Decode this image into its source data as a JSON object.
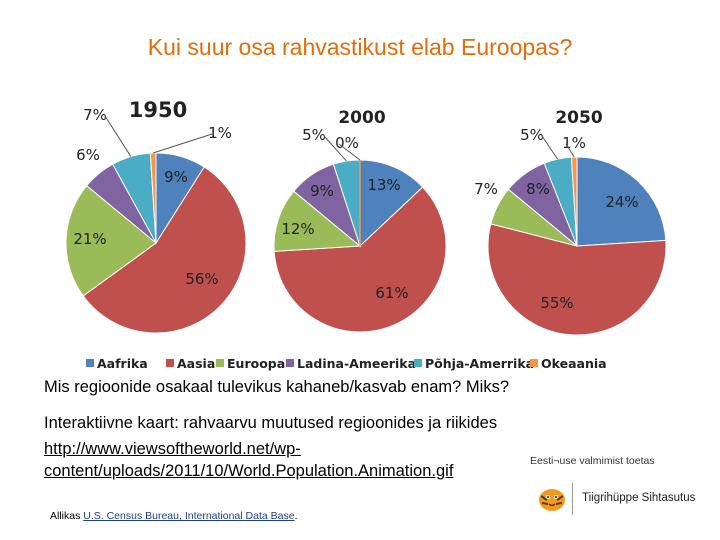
{
  "title": "Kui suur osa rahvastikust elab Euroopas?",
  "colors": {
    "title": "#e36c09",
    "Aafrika": "#4f81bd",
    "Aasia": "#c0504d",
    "Euroopa": "#9bbb59",
    "Ladina-Ameerika": "#8064a2",
    "Põhja-Amerrika": "#4bacc6",
    "Okeaania": "#f79646"
  },
  "chart_data": {
    "type": "pie",
    "legend_position": "bottom",
    "legend": [
      "Aafrika",
      "Aasia",
      "Euroopa",
      "Ladina-Ameerika",
      "Põhja-Amerrika",
      "Okeaania"
    ],
    "charts": [
      {
        "title": "1950",
        "slices": [
          {
            "name": "Aafrika",
            "value": 9,
            "label": "9%"
          },
          {
            "name": "Aasia",
            "value": 56,
            "label": "56%"
          },
          {
            "name": "Euroopa",
            "value": 21,
            "label": "21%"
          },
          {
            "name": "Ladina-Ameerika",
            "value": 6,
            "label": "6%"
          },
          {
            "name": "Põhja-Amerrika",
            "value": 7,
            "label": "7%"
          },
          {
            "name": "Okeaania",
            "value": 1,
            "label": "1%"
          }
        ]
      },
      {
        "title": "2000",
        "slices": [
          {
            "name": "Aafrika",
            "value": 13,
            "label": "13%"
          },
          {
            "name": "Aasia",
            "value": 61,
            "label": "61%"
          },
          {
            "name": "Euroopa",
            "value": 12,
            "label": "12%"
          },
          {
            "name": "Ladina-Ameerika",
            "value": 9,
            "label": "9%"
          },
          {
            "name": "Põhja-Amerrika",
            "value": 5,
            "label": "5%"
          },
          {
            "name": "Okeaania",
            "value": 0,
            "label": "0%"
          }
        ]
      },
      {
        "title": "2050",
        "slices": [
          {
            "name": "Aafrika",
            "value": 24,
            "label": "24%"
          },
          {
            "name": "Aasia",
            "value": 55,
            "label": "55%"
          },
          {
            "name": "Euroopa",
            "value": 7,
            "label": "7%"
          },
          {
            "name": "Ladina-Ameerika",
            "value": 8,
            "label": "8%"
          },
          {
            "name": "Põhja-Amerrika",
            "value": 5,
            "label": "5%"
          },
          {
            "name": "Okeaania",
            "value": 1,
            "label": "1%"
          }
        ]
      }
    ]
  },
  "text": {
    "question": "Mis regioonide osakaal tulevikus kahaneb/kasvab enam? Miks?",
    "interactive_map": "Interaktiivne kaart: rahvaarvu muutused regioonides ja riikides",
    "link_line1": "http://www.viewsoftheworld.net/wp-",
    "link_line2": "content/uploads/2011/10/World.Population.Animation.gif",
    "source_prefix": "Allikas ",
    "source_link": "U.S. Census Bureau, International Data Base",
    "source_suffix": "."
  },
  "logo": {
    "tagline": "Eesti¬use valmimist toetas",
    "name": "Tiigrihüppe Sihtasutus"
  }
}
